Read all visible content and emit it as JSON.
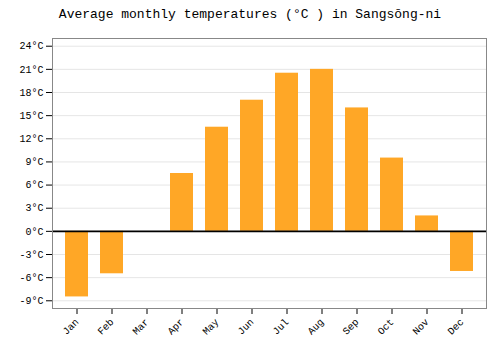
{
  "chart_data": {
    "type": "bar",
    "title": "Average monthly temperatures (°C ) in Sangsōng-ni",
    "categories": [
      "Jan",
      "Feb",
      "Mar",
      "Apr",
      "May",
      "Jun",
      "Jul",
      "Aug",
      "Sep",
      "Oct",
      "Nov",
      "Dec"
    ],
    "values": [
      -8.5,
      -5.5,
      0.0,
      7.5,
      13.5,
      17.0,
      20.5,
      21.0,
      16.0,
      9.5,
      2.0,
      -5.2
    ],
    "color": "#FFA726",
    "ylim": [
      -10,
      25
    ],
    "yticks": [
      {
        "value": -9,
        "label": "-9°C"
      },
      {
        "value": -6,
        "label": "-6°C"
      },
      {
        "value": -3,
        "label": "-3°C"
      },
      {
        "value": 0,
        "label": "0°C"
      },
      {
        "value": 3,
        "label": "3°C"
      },
      {
        "value": 6,
        "label": "6°C"
      },
      {
        "value": 9,
        "label": "9°C"
      },
      {
        "value": 12,
        "label": "12°C"
      },
      {
        "value": 15,
        "label": "15°C"
      },
      {
        "value": 18,
        "label": "18°C"
      },
      {
        "value": 21,
        "label": "21°C"
      },
      {
        "value": 24,
        "label": "24°C"
      }
    ],
    "grid": true
  }
}
